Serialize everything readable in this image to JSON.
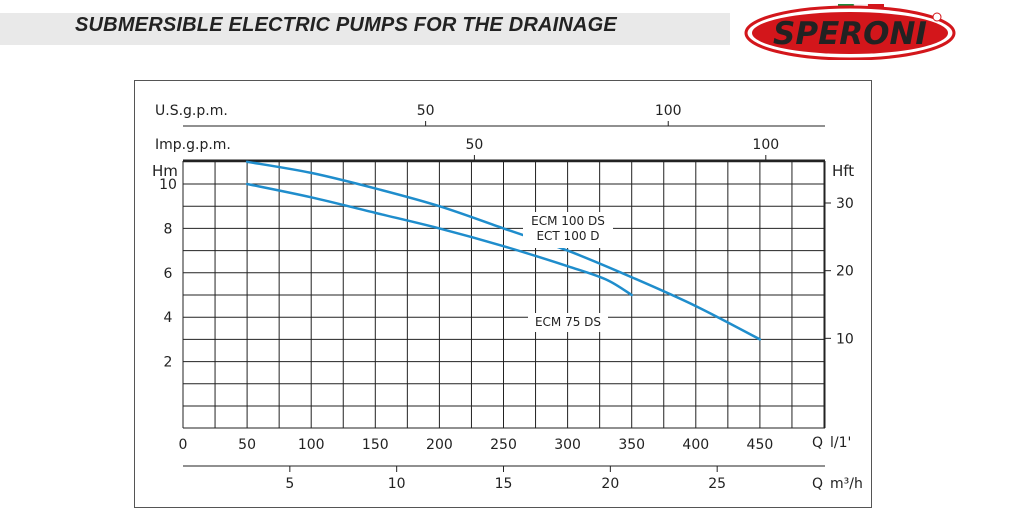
{
  "header": {
    "title": "SUBMERSIBLE ELECTRIC PUMPS FOR THE DRAINAGE",
    "logo_text": "SPERONI",
    "logo_color": "#d3161b",
    "flag_colors": [
      "#1f8a3b",
      "#ffffff",
      "#d3161b"
    ]
  },
  "colors": {
    "curve": "#1f8dcc",
    "grid": "#222222",
    "text": "#222222"
  },
  "chart_data": {
    "type": "line",
    "title": "",
    "primary_x": {
      "label": "l/1'",
      "unit_prefix": "Q",
      "range": [
        0,
        500
      ],
      "ticks": [
        0,
        50,
        100,
        150,
        200,
        250,
        300,
        350,
        400,
        450
      ]
    },
    "primary_y": {
      "label": "Hm",
      "range": [
        0,
        12
      ],
      "ticks": [
        2,
        4,
        6,
        8,
        10
      ]
    },
    "secondary_y": {
      "label": "Hft",
      "ticks": [
        10,
        20,
        30
      ]
    },
    "top_axes": [
      {
        "label": "U.S.g.p.m.",
        "ticks": [
          50,
          100
        ]
      },
      {
        "label": "Imp.g.p.m.",
        "ticks": [
          50,
          100
        ]
      }
    ],
    "bottom_axis": {
      "label": "m³/h",
      "unit_prefix": "Q",
      "ticks": [
        5,
        10,
        15,
        20,
        25
      ]
    },
    "series": [
      {
        "name": "ECM 100 DS",
        "name2": "ECT 100 D",
        "x": [
          50,
          100,
          150,
          200,
          250,
          300,
          350,
          400,
          450
        ],
        "y": [
          11.0,
          10.5,
          9.8,
          9.0,
          8.0,
          7.0,
          5.8,
          4.5,
          3.0
        ]
      },
      {
        "name": "ECM 75 DS",
        "x": [
          50,
          100,
          150,
          200,
          250,
          300,
          330,
          350
        ],
        "y": [
          10.0,
          9.4,
          8.7,
          8.0,
          7.2,
          6.3,
          5.7,
          5.0
        ]
      }
    ]
  }
}
